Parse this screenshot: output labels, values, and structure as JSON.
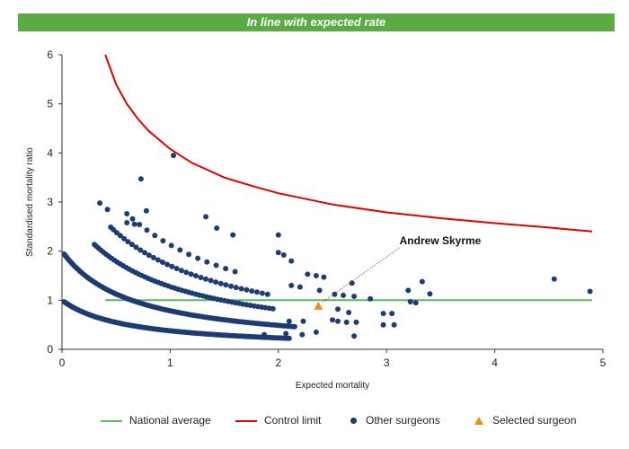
{
  "banner": {
    "text": "In line with expected rate",
    "color": "#5aab44"
  },
  "chart_data": {
    "type": "scatter",
    "title": "",
    "xlabel": "Expected mortality",
    "ylabel": "Standardised mortality ratio",
    "xlim": [
      0,
      5
    ],
    "ylim": [
      0,
      6
    ],
    "xticks": [
      "0",
      "1",
      "2",
      "3",
      "4",
      "5"
    ],
    "yticks": [
      "0",
      "1",
      "2",
      "3",
      "4",
      "5",
      "6"
    ],
    "grid": false,
    "legend_position": "bottom",
    "series": [
      {
        "name": "National average",
        "kind": "line",
        "color": "#5cb85c",
        "points": [
          [
            0.4,
            1.0
          ],
          [
            4.9,
            1.0
          ]
        ]
      },
      {
        "name": "Control limit",
        "kind": "line",
        "color": "#e00000",
        "points": [
          [
            0.4,
            6.0
          ],
          [
            0.5,
            5.4
          ],
          [
            0.6,
            5.0
          ],
          [
            0.7,
            4.7
          ],
          [
            0.8,
            4.45
          ],
          [
            1.0,
            4.08
          ],
          [
            1.2,
            3.8
          ],
          [
            1.5,
            3.5
          ],
          [
            1.8,
            3.3
          ],
          [
            2.0,
            3.18
          ],
          [
            2.5,
            2.95
          ],
          [
            3.0,
            2.79
          ],
          [
            3.5,
            2.67
          ],
          [
            4.0,
            2.57
          ],
          [
            4.5,
            2.48
          ],
          [
            4.9,
            2.4
          ]
        ]
      },
      {
        "name": "Other surgeons",
        "kind": "scatter",
        "color": "#1f3b73",
        "curves": [
          {
            "k": 0,
            "xmin": 0.02,
            "xmax": 2.1,
            "count": 120
          },
          {
            "k": 1,
            "xmin": 0.02,
            "xmax": 2.15,
            "count": 110
          },
          {
            "k": 2,
            "xmin": 0.3,
            "xmax": 1.95,
            "count": 55
          },
          {
            "k": 3,
            "xmin": 0.45,
            "xmax": 1.9,
            "count": 35
          },
          {
            "k": 4,
            "xmin": 0.6,
            "xmax": 1.6,
            "count": 14
          }
        ],
        "points": [
          [
            1.03,
            3.95
          ],
          [
            0.73,
            3.47
          ],
          [
            0.35,
            2.98
          ],
          [
            0.42,
            2.85
          ],
          [
            0.78,
            2.82
          ],
          [
            0.6,
            2.58
          ],
          [
            0.67,
            2.55
          ],
          [
            1.33,
            2.7
          ],
          [
            1.43,
            2.47
          ],
          [
            1.58,
            2.33
          ],
          [
            2.0,
            2.33
          ],
          [
            2.05,
            1.92
          ],
          [
            2.12,
            1.8
          ],
          [
            2.0,
            1.97
          ],
          [
            2.27,
            1.53
          ],
          [
            2.35,
            1.5
          ],
          [
            2.42,
            1.47
          ],
          [
            2.12,
            1.3
          ],
          [
            2.2,
            1.27
          ],
          [
            2.38,
            1.2
          ],
          [
            2.52,
            1.12
          ],
          [
            2.6,
            1.1
          ],
          [
            2.68,
            1.35
          ],
          [
            2.7,
            1.08
          ],
          [
            2.85,
            1.03
          ],
          [
            2.22,
            0.3
          ],
          [
            2.35,
            0.35
          ],
          [
            2.5,
            0.6
          ],
          [
            2.55,
            0.57
          ],
          [
            2.63,
            0.55
          ],
          [
            2.72,
            0.55
          ],
          [
            2.55,
            0.82
          ],
          [
            2.65,
            0.75
          ],
          [
            2.7,
            0.27
          ],
          [
            2.97,
            0.73
          ],
          [
            2.97,
            0.5
          ],
          [
            3.05,
            0.73
          ],
          [
            3.07,
            0.5
          ],
          [
            3.2,
            1.2
          ],
          [
            3.22,
            0.97
          ],
          [
            3.27,
            0.95
          ],
          [
            3.33,
            1.38
          ],
          [
            3.4,
            1.13
          ],
          [
            4.55,
            1.43
          ],
          [
            4.88,
            1.18
          ],
          [
            1.87,
            0.3
          ],
          [
            2.07,
            0.32
          ],
          [
            2.1,
            0.57
          ],
          [
            2.23,
            0.57
          ]
        ]
      },
      {
        "name": "Selected surgeon",
        "kind": "scatter",
        "marker": "triangle",
        "color": "#f08c1e",
        "points": [
          [
            2.37,
            0.88
          ]
        ]
      }
    ],
    "annotations": [
      {
        "text": "Andrew Skyrme",
        "x": 3.12,
        "y": 2.18,
        "target": [
          2.37,
          0.88
        ]
      }
    ]
  }
}
